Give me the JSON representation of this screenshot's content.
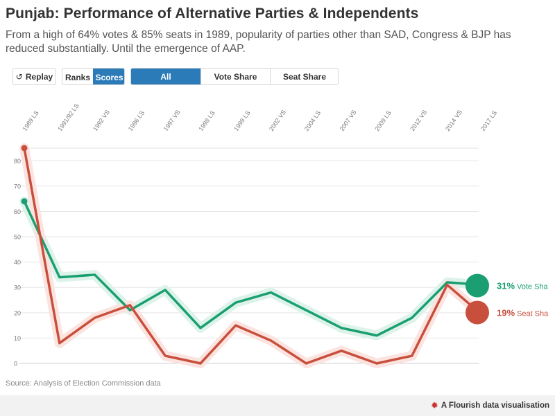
{
  "header": {
    "title": "Punjab: Performance of Alternative Parties & Independents",
    "subtitle": "From a high of 64% votes & 85% seats in 1989, popularity of parties other than SAD, Congress & BJP has reduced substantially. Until the emergence of AAP."
  },
  "controls": {
    "replay_label": "Replay",
    "replay_icon": "replay-icon",
    "ranks_label": "Ranks",
    "scores_label": "Scores",
    "filter_all": "All",
    "filter_vote": "Vote Share",
    "filter_seat": "Seat Share",
    "active_color": "#2b7bb9"
  },
  "chart_data": {
    "type": "line",
    "title": "",
    "xlabel": "",
    "ylabel": "",
    "categories": [
      "1989 LS",
      "1991/92 LS",
      "1992 VS",
      "1996 LS",
      "1997 VS",
      "1998 LS",
      "1999 LS",
      "2002 VS",
      "2004 LS",
      "2007 VS",
      "2009 LS",
      "2012 VS",
      "2014 VS",
      "2017 LS"
    ],
    "ylim": [
      0,
      85
    ],
    "yticks": [
      0,
      10,
      20,
      30,
      40,
      50,
      60,
      70,
      80
    ],
    "grid": true,
    "series": [
      {
        "name": "Vote Sha",
        "color": "#1a9e72",
        "halo": "#ddf3ea",
        "values": [
          64,
          34,
          35,
          21,
          29,
          14,
          24,
          28,
          21,
          14,
          11,
          18,
          32,
          31
        ],
        "end_label": "31%"
      },
      {
        "name": "Seat Sha",
        "color": "#c94f3d",
        "halo": "#fbe3df",
        "values": [
          85,
          8,
          18,
          23,
          3,
          0,
          15,
          9,
          0,
          5,
          0,
          3,
          31,
          19
        ],
        "end_label": "19%"
      }
    ]
  },
  "source": "Source: Analysis of Election Commission data",
  "footer": {
    "credit": "A Flourish data visualisation",
    "icon": "flourish-icon"
  }
}
